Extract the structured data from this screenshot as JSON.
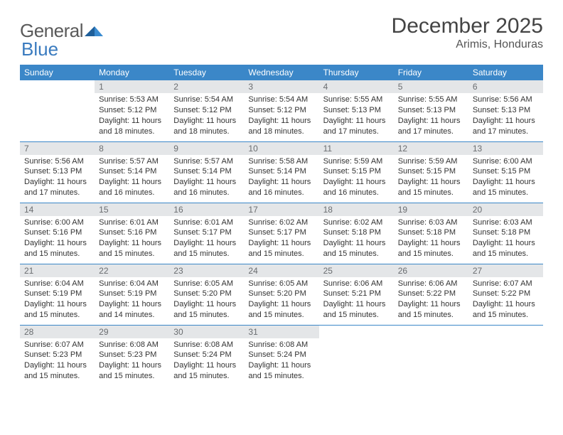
{
  "brand": {
    "part1": "General",
    "part2": "Blue"
  },
  "title": "December 2025",
  "location": "Arimis, Honduras",
  "colors": {
    "header_bg": "#3b87c8",
    "header_text": "#ffffff",
    "daynum_bg": "#e4e6e8",
    "daynum_text": "#6a6d70",
    "rule": "#3b87c8",
    "logo_gray": "#5a5a5a",
    "logo_blue": "#3a7bbf"
  },
  "weekdays": [
    "Sunday",
    "Monday",
    "Tuesday",
    "Wednesday",
    "Thursday",
    "Friday",
    "Saturday"
  ],
  "weeks": [
    [
      null,
      {
        "n": "1",
        "sr": "Sunrise: 5:53 AM",
        "ss": "Sunset: 5:12 PM",
        "d1": "Daylight: 11 hours",
        "d2": "and 18 minutes."
      },
      {
        "n": "2",
        "sr": "Sunrise: 5:54 AM",
        "ss": "Sunset: 5:12 PM",
        "d1": "Daylight: 11 hours",
        "d2": "and 18 minutes."
      },
      {
        "n": "3",
        "sr": "Sunrise: 5:54 AM",
        "ss": "Sunset: 5:12 PM",
        "d1": "Daylight: 11 hours",
        "d2": "and 18 minutes."
      },
      {
        "n": "4",
        "sr": "Sunrise: 5:55 AM",
        "ss": "Sunset: 5:13 PM",
        "d1": "Daylight: 11 hours",
        "d2": "and 17 minutes."
      },
      {
        "n": "5",
        "sr": "Sunrise: 5:55 AM",
        "ss": "Sunset: 5:13 PM",
        "d1": "Daylight: 11 hours",
        "d2": "and 17 minutes."
      },
      {
        "n": "6",
        "sr": "Sunrise: 5:56 AM",
        "ss": "Sunset: 5:13 PM",
        "d1": "Daylight: 11 hours",
        "d2": "and 17 minutes."
      }
    ],
    [
      {
        "n": "7",
        "sr": "Sunrise: 5:56 AM",
        "ss": "Sunset: 5:13 PM",
        "d1": "Daylight: 11 hours",
        "d2": "and 17 minutes."
      },
      {
        "n": "8",
        "sr": "Sunrise: 5:57 AM",
        "ss": "Sunset: 5:14 PM",
        "d1": "Daylight: 11 hours",
        "d2": "and 16 minutes."
      },
      {
        "n": "9",
        "sr": "Sunrise: 5:57 AM",
        "ss": "Sunset: 5:14 PM",
        "d1": "Daylight: 11 hours",
        "d2": "and 16 minutes."
      },
      {
        "n": "10",
        "sr": "Sunrise: 5:58 AM",
        "ss": "Sunset: 5:14 PM",
        "d1": "Daylight: 11 hours",
        "d2": "and 16 minutes."
      },
      {
        "n": "11",
        "sr": "Sunrise: 5:59 AM",
        "ss": "Sunset: 5:15 PM",
        "d1": "Daylight: 11 hours",
        "d2": "and 16 minutes."
      },
      {
        "n": "12",
        "sr": "Sunrise: 5:59 AM",
        "ss": "Sunset: 5:15 PM",
        "d1": "Daylight: 11 hours",
        "d2": "and 15 minutes."
      },
      {
        "n": "13",
        "sr": "Sunrise: 6:00 AM",
        "ss": "Sunset: 5:15 PM",
        "d1": "Daylight: 11 hours",
        "d2": "and 15 minutes."
      }
    ],
    [
      {
        "n": "14",
        "sr": "Sunrise: 6:00 AM",
        "ss": "Sunset: 5:16 PM",
        "d1": "Daylight: 11 hours",
        "d2": "and 15 minutes."
      },
      {
        "n": "15",
        "sr": "Sunrise: 6:01 AM",
        "ss": "Sunset: 5:16 PM",
        "d1": "Daylight: 11 hours",
        "d2": "and 15 minutes."
      },
      {
        "n": "16",
        "sr": "Sunrise: 6:01 AM",
        "ss": "Sunset: 5:17 PM",
        "d1": "Daylight: 11 hours",
        "d2": "and 15 minutes."
      },
      {
        "n": "17",
        "sr": "Sunrise: 6:02 AM",
        "ss": "Sunset: 5:17 PM",
        "d1": "Daylight: 11 hours",
        "d2": "and 15 minutes."
      },
      {
        "n": "18",
        "sr": "Sunrise: 6:02 AM",
        "ss": "Sunset: 5:18 PM",
        "d1": "Daylight: 11 hours",
        "d2": "and 15 minutes."
      },
      {
        "n": "19",
        "sr": "Sunrise: 6:03 AM",
        "ss": "Sunset: 5:18 PM",
        "d1": "Daylight: 11 hours",
        "d2": "and 15 minutes."
      },
      {
        "n": "20",
        "sr": "Sunrise: 6:03 AM",
        "ss": "Sunset: 5:18 PM",
        "d1": "Daylight: 11 hours",
        "d2": "and 15 minutes."
      }
    ],
    [
      {
        "n": "21",
        "sr": "Sunrise: 6:04 AM",
        "ss": "Sunset: 5:19 PM",
        "d1": "Daylight: 11 hours",
        "d2": "and 15 minutes."
      },
      {
        "n": "22",
        "sr": "Sunrise: 6:04 AM",
        "ss": "Sunset: 5:19 PM",
        "d1": "Daylight: 11 hours",
        "d2": "and 14 minutes."
      },
      {
        "n": "23",
        "sr": "Sunrise: 6:05 AM",
        "ss": "Sunset: 5:20 PM",
        "d1": "Daylight: 11 hours",
        "d2": "and 15 minutes."
      },
      {
        "n": "24",
        "sr": "Sunrise: 6:05 AM",
        "ss": "Sunset: 5:20 PM",
        "d1": "Daylight: 11 hours",
        "d2": "and 15 minutes."
      },
      {
        "n": "25",
        "sr": "Sunrise: 6:06 AM",
        "ss": "Sunset: 5:21 PM",
        "d1": "Daylight: 11 hours",
        "d2": "and 15 minutes."
      },
      {
        "n": "26",
        "sr": "Sunrise: 6:06 AM",
        "ss": "Sunset: 5:22 PM",
        "d1": "Daylight: 11 hours",
        "d2": "and 15 minutes."
      },
      {
        "n": "27",
        "sr": "Sunrise: 6:07 AM",
        "ss": "Sunset: 5:22 PM",
        "d1": "Daylight: 11 hours",
        "d2": "and 15 minutes."
      }
    ],
    [
      {
        "n": "28",
        "sr": "Sunrise: 6:07 AM",
        "ss": "Sunset: 5:23 PM",
        "d1": "Daylight: 11 hours",
        "d2": "and 15 minutes."
      },
      {
        "n": "29",
        "sr": "Sunrise: 6:08 AM",
        "ss": "Sunset: 5:23 PM",
        "d1": "Daylight: 11 hours",
        "d2": "and 15 minutes."
      },
      {
        "n": "30",
        "sr": "Sunrise: 6:08 AM",
        "ss": "Sunset: 5:24 PM",
        "d1": "Daylight: 11 hours",
        "d2": "and 15 minutes."
      },
      {
        "n": "31",
        "sr": "Sunrise: 6:08 AM",
        "ss": "Sunset: 5:24 PM",
        "d1": "Daylight: 11 hours",
        "d2": "and 15 minutes."
      },
      null,
      null,
      null
    ]
  ]
}
